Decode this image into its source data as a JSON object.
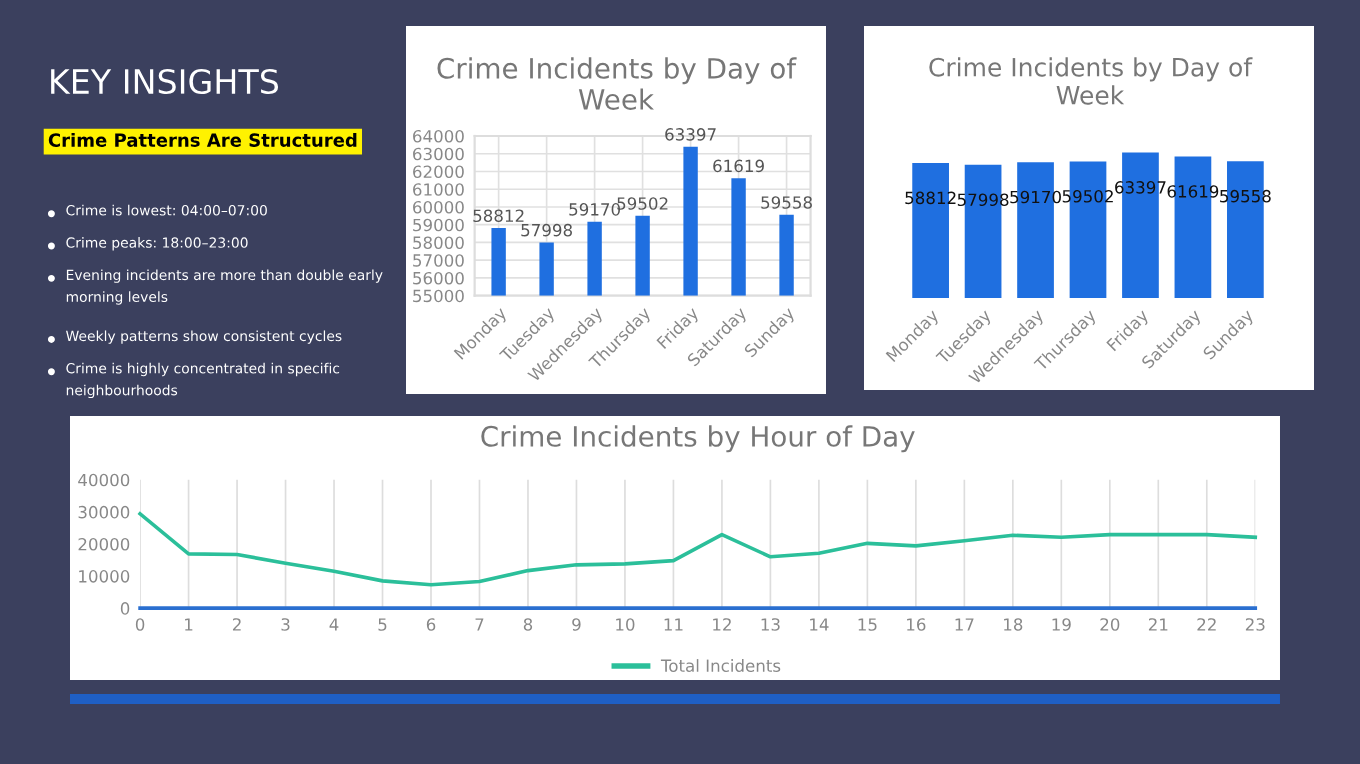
{
  "chart_data": [
    {
      "type": "other",
      "title": "KEY INSIGHTS",
      "subtitle": "Crime Patterns Are Structured",
      "annotations": [
        "Crime is lowest: 04:00–07:00",
        "Crime peaks: 18:00–23:00",
        "Evening incidents are more than double early morning levels",
        "Weekly patterns show consistent cycles",
        "Crime is highly concentrated in specific neighbourhoods"
      ]
    },
    {
      "type": "bar",
      "title": "Crime Incidents by Day of Week",
      "categories": [
        "Monday",
        "Tuesday",
        "Wednesday",
        "Thursday",
        "Friday",
        "Saturday",
        "Sunday"
      ],
      "values": [
        58812,
        57998,
        59170,
        59502,
        63397,
        61619,
        59558
      ],
      "color": "#1f6fe0",
      "ylim": [
        55000,
        64000
      ],
      "yticks": [
        55000,
        56000,
        57000,
        58000,
        59000,
        60000,
        61000,
        62000,
        63000,
        64000
      ],
      "grid": true,
      "data_labels": true
    },
    {
      "type": "bar",
      "title": "Crime Incidents by Day of Week",
      "categories": [
        "Monday",
        "Tuesday",
        "Wednesday",
        "Thursday",
        "Friday",
        "Saturday",
        "Sunday"
      ],
      "values": [
        58812,
        57998,
        59170,
        59502,
        63397,
        61619,
        59558
      ],
      "color": "#1f6fe0",
      "data_labels": true,
      "tick_labels": "x"
    },
    {
      "type": "line",
      "title": "Crime Incidents by Hour of Day",
      "x": [
        0,
        1,
        2,
        3,
        4,
        5,
        6,
        7,
        8,
        9,
        10,
        11,
        12,
        13,
        14,
        15,
        16,
        17,
        18,
        19,
        20,
        21,
        22,
        23
      ],
      "ylim": [
        0,
        40000
      ],
      "yticks": [
        0,
        10000,
        20000,
        30000,
        40000
      ],
      "xlim": [
        0,
        23
      ],
      "xticks": [
        0,
        1,
        2,
        3,
        4,
        5,
        6,
        7,
        8,
        9,
        10,
        11,
        12,
        13,
        14,
        15,
        16,
        17,
        18,
        19,
        20,
        21,
        22,
        23
      ],
      "grid": "x",
      "legend": "bottom",
      "series": [
        {
          "name": "Total Incidents",
          "color": "#2bbf9a",
          "values": [
            29400,
            16900,
            16700,
            14000,
            11500,
            8500,
            7300,
            8300,
            11700,
            13500,
            13800,
            14800,
            22900,
            16000,
            17100,
            20200,
            19400,
            21000,
            22700,
            22100,
            22900,
            22900,
            22900,
            22100
          ]
        },
        {
          "color": "#2a6fd0",
          "values": [
            0,
            0,
            0,
            0,
            0,
            0,
            0,
            0,
            0,
            0,
            0,
            0,
            0,
            0,
            0,
            0,
            0,
            0,
            0,
            0,
            0,
            0,
            0,
            0
          ]
        }
      ]
    }
  ]
}
